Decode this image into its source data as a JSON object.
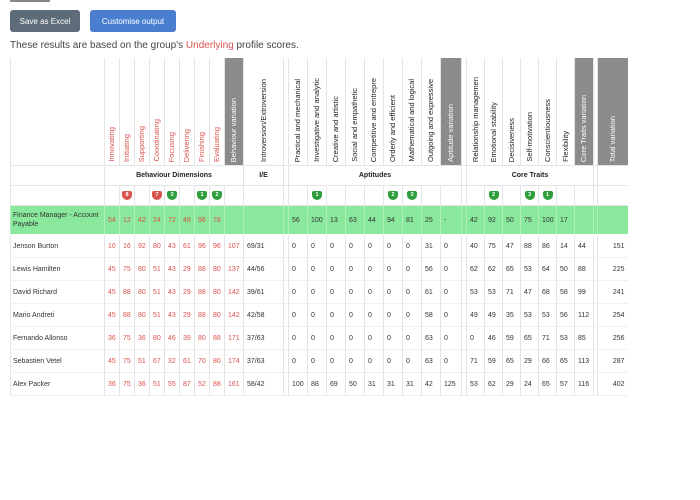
{
  "toolbar": {
    "save_excel_label": "Save as Excel",
    "customise_label": "Customise output"
  },
  "intro": {
    "before": "These results are based on the group's ",
    "highlight": "Underlying",
    "after": " profile scores."
  },
  "colors": {
    "accent_red": "#d9534f",
    "target_green": "#89e89b",
    "badge_green": "#2e9e3c",
    "header_gray": "#8b8b8b"
  },
  "columns": [
    {
      "label": "Innovating",
      "style": "red"
    },
    {
      "label": "Initiating",
      "style": "red"
    },
    {
      "label": "Supporting",
      "style": "red"
    },
    {
      "label": "Coordinating",
      "style": "red"
    },
    {
      "label": "Focusing",
      "style": "red"
    },
    {
      "label": "Delivering",
      "style": "red"
    },
    {
      "label": "Finishing",
      "style": "red"
    },
    {
      "label": "Evaluating",
      "style": "red"
    },
    {
      "label": "Behaviour variation",
      "style": "gray"
    },
    {
      "label": "Introversion/Extroversion",
      "style": "dark"
    },
    {
      "label": "",
      "style": "dark"
    },
    {
      "label": "Practical and mechanical",
      "style": "dark"
    },
    {
      "label": "Investigative and analytic",
      "style": "dark"
    },
    {
      "label": "Creative and artistic",
      "style": "dark"
    },
    {
      "label": "Social and empathetic",
      "style": "dark"
    },
    {
      "label": "Competitive and entrepre",
      "style": "dark"
    },
    {
      "label": "Orderly and efficient",
      "style": "dark"
    },
    {
      "label": "Mathematical and logical",
      "style": "dark"
    },
    {
      "label": "Outgoing and expressive",
      "style": "dark"
    },
    {
      "label": "Aptitude variation",
      "style": "gray"
    },
    {
      "label": "",
      "style": "dark"
    },
    {
      "label": "Relationship managemen",
      "style": "dark"
    },
    {
      "label": "Emotional stability",
      "style": "dark"
    },
    {
      "label": "Decisiveness",
      "style": "dark"
    },
    {
      "label": "Self-motivation",
      "style": "dark"
    },
    {
      "label": "Conscientiousness",
      "style": "dark"
    },
    {
      "label": "Flexibility",
      "style": "dark"
    },
    {
      "label": "Core Traits variation",
      "style": "gray"
    },
    {
      "label": "",
      "style": "dark"
    },
    {
      "label": "Total variation",
      "style": "gray"
    }
  ],
  "groups": [
    {
      "label": "Behaviour Dimensions",
      "span": 9
    },
    {
      "label": "I/E",
      "span": 1
    },
    {
      "label": "",
      "span": 1
    },
    {
      "label": "Aptitudes",
      "span": 9
    },
    {
      "label": "",
      "span": 1
    },
    {
      "label": "Core Traits",
      "span": 7
    },
    {
      "label": "",
      "span": 1
    },
    {
      "label": "",
      "span": 1
    }
  ],
  "markers": [
    {
      "col": 1,
      "value": "8",
      "color": "red"
    },
    {
      "col": 3,
      "value": "7",
      "color": "red"
    },
    {
      "col": 4,
      "value": "3",
      "color": "green"
    },
    {
      "col": 6,
      "value": "1",
      "color": "green"
    },
    {
      "col": 7,
      "value": "2",
      "color": "green"
    },
    {
      "col": 12,
      "value": "1",
      "color": "green"
    },
    {
      "col": 16,
      "value": "2",
      "color": "green"
    },
    {
      "col": 17,
      "value": "3",
      "color": "green"
    },
    {
      "col": 22,
      "value": "2",
      "color": "green"
    },
    {
      "col": 24,
      "value": "3",
      "color": "green"
    },
    {
      "col": 25,
      "value": "1",
      "color": "green"
    }
  ],
  "rows": [
    {
      "name": "Finance Manager - Account Payable",
      "target": true,
      "cells": [
        "54",
        "12",
        "42",
        "24",
        "72",
        "48",
        "96",
        "78",
        "",
        "",
        "",
        "56",
        "100",
        "13",
        "63",
        "44",
        "94",
        "81",
        "25",
        "-",
        "",
        "42",
        "92",
        "50",
        "75",
        "100",
        "17",
        "",
        "",
        ""
      ]
    },
    {
      "name": "Jenson Burton",
      "cells": [
        "10",
        "16",
        "92",
        "80",
        "43",
        "61",
        "96",
        "96",
        "107",
        "69/31",
        "",
        "0",
        "0",
        "0",
        "0",
        "0",
        "0",
        "0",
        "31",
        "0",
        "",
        "40",
        "75",
        "47",
        "88",
        "86",
        "14",
        "44",
        "",
        "151"
      ]
    },
    {
      "name": "Lewis Hamilten",
      "cells": [
        "45",
        "75",
        "80",
        "51",
        "43",
        "29",
        "88",
        "80",
        "137",
        "44/56",
        "",
        "0",
        "0",
        "0",
        "0",
        "0",
        "0",
        "0",
        "56",
        "0",
        "",
        "62",
        "62",
        "65",
        "53",
        "64",
        "50",
        "88",
        "",
        "225"
      ]
    },
    {
      "name": "David Richard",
      "cells": [
        "45",
        "88",
        "80",
        "51",
        "43",
        "29",
        "88",
        "80",
        "142",
        "39/61",
        "",
        "0",
        "0",
        "0",
        "0",
        "0",
        "0",
        "0",
        "61",
        "0",
        "",
        "53",
        "53",
        "71",
        "47",
        "68",
        "58",
        "99",
        "",
        "241"
      ]
    },
    {
      "name": "Mario Andreti",
      "cells": [
        "45",
        "88",
        "80",
        "51",
        "43",
        "29",
        "88",
        "80",
        "142",
        "42/58",
        "",
        "0",
        "0",
        "0",
        "0",
        "0",
        "0",
        "0",
        "58",
        "0",
        "",
        "49",
        "49",
        "35",
        "53",
        "53",
        "56",
        "112",
        "",
        "254"
      ]
    },
    {
      "name": "Fernando Allonso",
      "cells": [
        "36",
        "75",
        "36",
        "80",
        "46",
        "39",
        "80",
        "88",
        "171",
        "37/63",
        "",
        "0",
        "0",
        "0",
        "0",
        "0",
        "0",
        "0",
        "63",
        "0",
        "",
        "0",
        "46",
        "59",
        "65",
        "71",
        "53",
        "85",
        "",
        "256"
      ]
    },
    {
      "name": "Sebastien Vetel",
      "cells": [
        "45",
        "75",
        "51",
        "67",
        "32",
        "61",
        "70",
        "80",
        "174",
        "37/63",
        "",
        "0",
        "0",
        "0",
        "0",
        "0",
        "0",
        "0",
        "63",
        "0",
        "",
        "71",
        "59",
        "65",
        "29",
        "66",
        "65",
        "113",
        "",
        "287"
      ]
    },
    {
      "name": "Alex Packer",
      "cells": [
        "36",
        "75",
        "36",
        "51",
        "55",
        "87",
        "52",
        "88",
        "161",
        "58/42",
        "",
        "100",
        "88",
        "69",
        "50",
        "31",
        "31",
        "31",
        "42",
        "125",
        "",
        "53",
        "62",
        "29",
        "24",
        "65",
        "57",
        "116",
        "",
        "402"
      ]
    }
  ]
}
